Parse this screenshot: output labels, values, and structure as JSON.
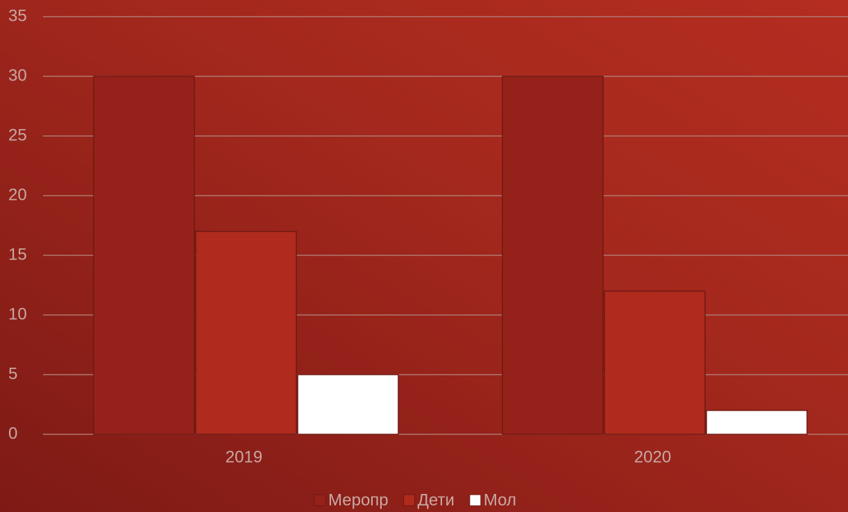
{
  "chart_data": {
    "type": "bar",
    "categories": [
      "2019",
      "2020"
    ],
    "series": [
      {
        "name": "Меропр",
        "color": "#95221a",
        "values": [
          30,
          30
        ]
      },
      {
        "name": "Дети",
        "color": "#b02b1e",
        "values": [
          17,
          12
        ]
      },
      {
        "name": "Мол",
        "color": "#ffffff",
        "values": [
          5,
          2
        ]
      }
    ],
    "ylim": [
      0,
      35
    ],
    "yticks": [
      0,
      5,
      10,
      15,
      20,
      25,
      30,
      35
    ],
    "grid": true,
    "legend": "bottom"
  }
}
